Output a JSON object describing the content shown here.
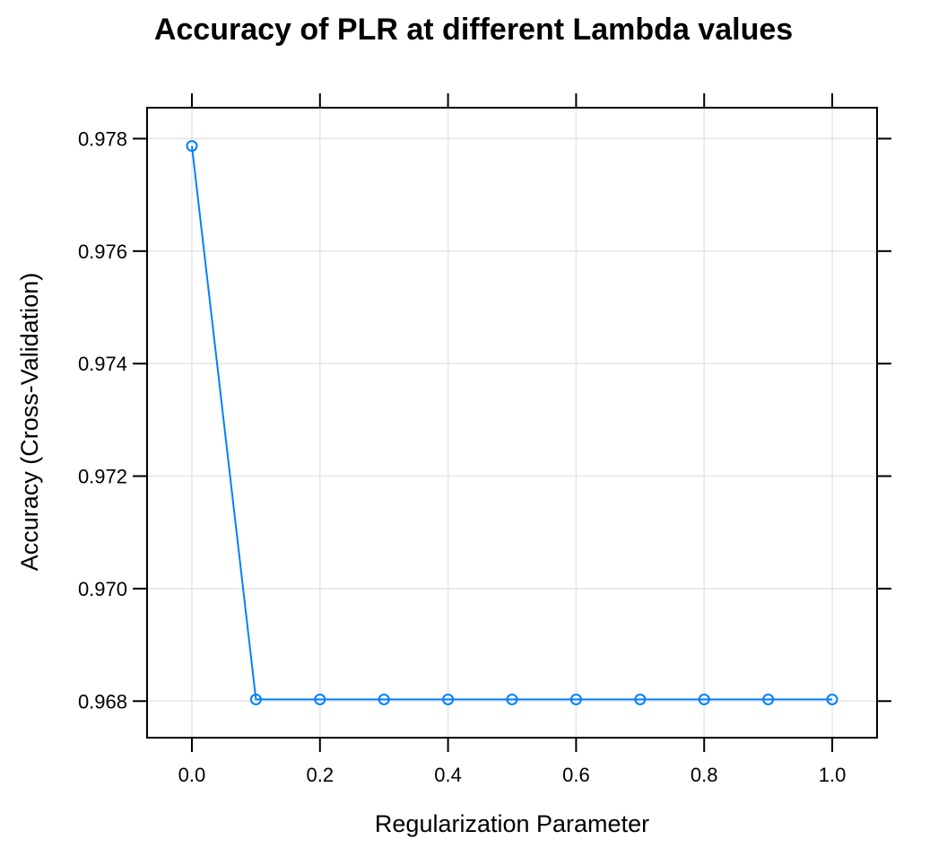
{
  "chart_data": {
    "type": "line",
    "title": "Accuracy of PLR at different Lambda values",
    "xlabel": "Regularization Parameter",
    "ylabel": "Accuracy (Cross-Validation)",
    "x": [
      0.0,
      0.1,
      0.2,
      0.3,
      0.4,
      0.5,
      0.6,
      0.7,
      0.8,
      0.9,
      1.0
    ],
    "series": [
      {
        "values": [
          0.97787,
          0.96803,
          0.96803,
          0.96803,
          0.96803,
          0.96803,
          0.96803,
          0.96803,
          0.96803,
          0.96803,
          0.96803
        ],
        "color": "#0080ff",
        "marker": "circle"
      }
    ],
    "xticks": [
      "0.0",
      "0.2",
      "0.4",
      "0.6",
      "0.8",
      "1.0"
    ],
    "xtick_values": [
      0.0,
      0.2,
      0.4,
      0.6,
      0.8,
      1.0
    ],
    "yticks": [
      "0.968",
      "0.970",
      "0.972",
      "0.974",
      "0.976",
      "0.978"
    ],
    "ytick_values": [
      0.968,
      0.97,
      0.972,
      0.974,
      0.976,
      0.978
    ],
    "xlim": [
      -0.07,
      1.07
    ],
    "ylim": [
      0.96735,
      0.97855
    ],
    "grid": true,
    "grid_color": "#e6e6e6",
    "axis_color": "#000000"
  }
}
